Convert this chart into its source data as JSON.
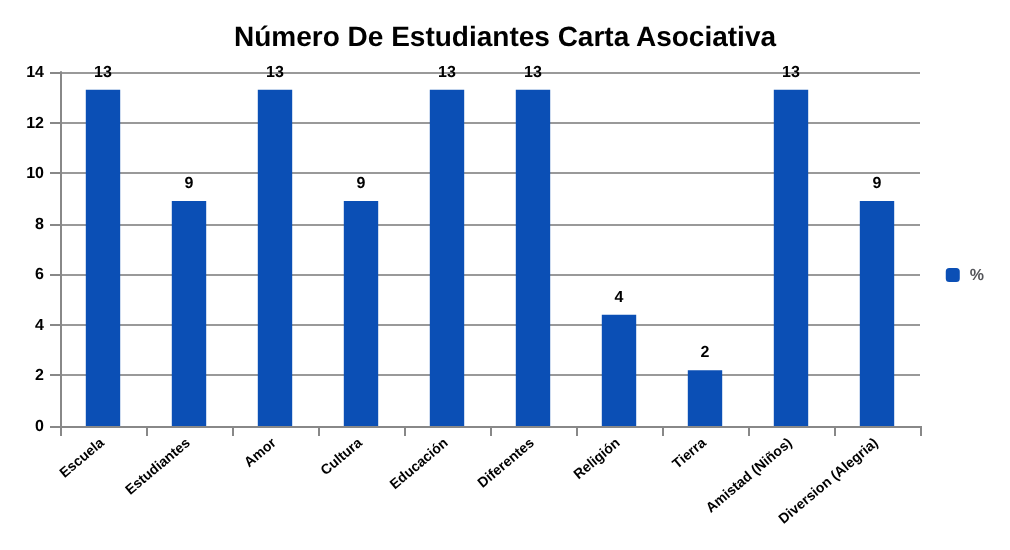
{
  "chart_data": {
    "type": "bar",
    "title": "Número De Estudiantes Carta Asociativa",
    "categories": [
      "Escuela",
      "Estudiantes",
      "Amor",
      "Cultura",
      "Educación",
      "Diferentes",
      "Religión",
      "Tierra",
      "Amistad (Niños)",
      "Diversion (Alegria)"
    ],
    "series": [
      {
        "name": "%",
        "color": "#0b4fb5",
        "values": [
          13.3,
          8.9,
          13.3,
          8.9,
          13.3,
          13.3,
          4.4,
          2.2,
          13.3,
          8.9
        ],
        "value_labels": [
          "13",
          "9",
          "13",
          "9",
          "13",
          "13",
          "4",
          "2",
          "13",
          "9"
        ]
      }
    ],
    "ylim": [
      0,
      14
    ],
    "yticks": [
      0,
      2,
      4,
      6,
      8,
      10,
      12,
      14
    ],
    "grid": "y",
    "legend": "right"
  }
}
